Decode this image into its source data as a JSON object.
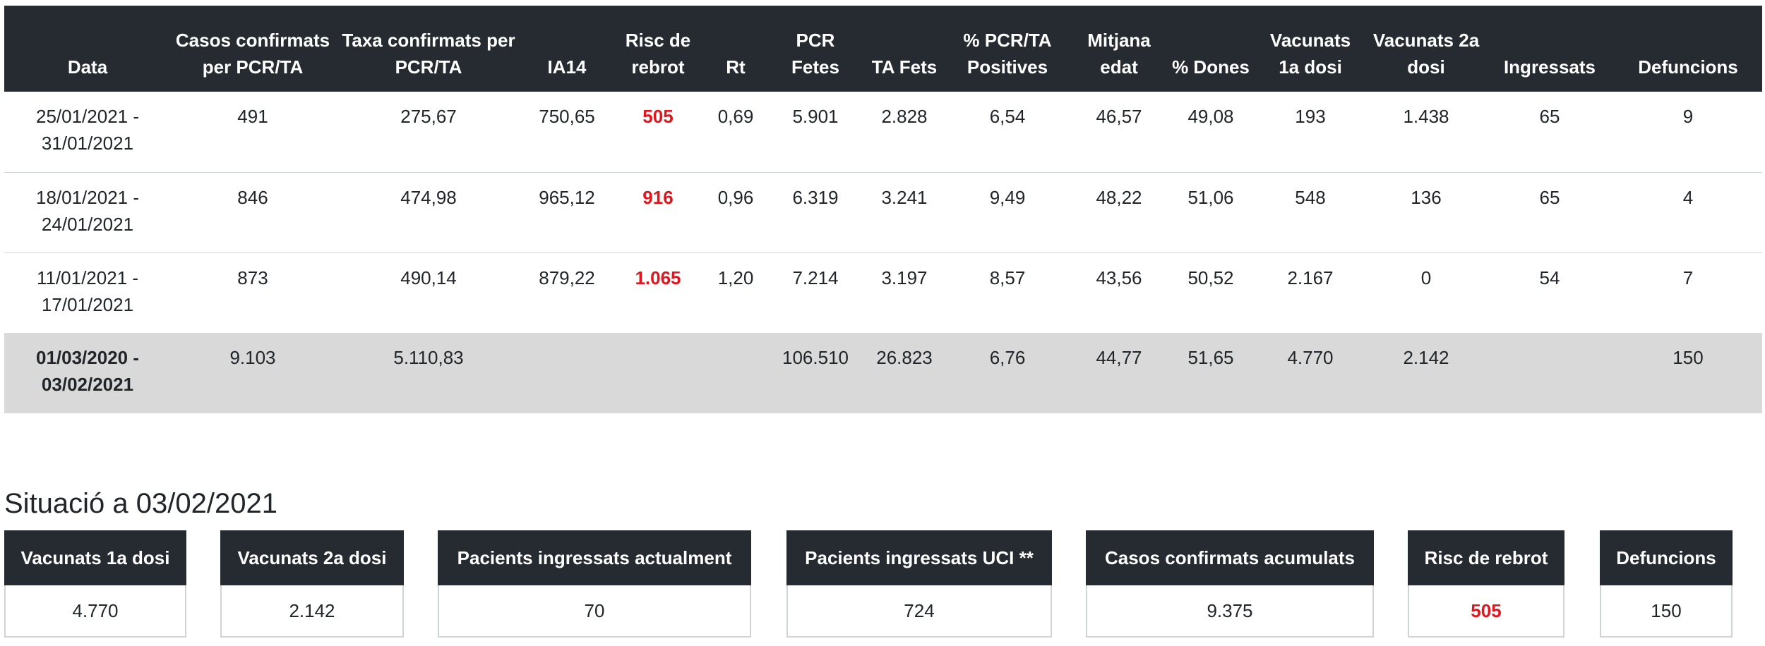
{
  "table": {
    "headers": [
      "Data",
      "Casos confirmats per PCR/TA",
      "Taxa confirmats per PCR/TA",
      "IA14",
      "Risc de rebrot",
      "Rt",
      "PCR Fetes",
      "TA Fets",
      "% PCR/TA Positives",
      "Mitjana edat",
      "% Dones",
      "Vacunats 1a dosi",
      "Vacunats 2a dosi",
      "Ingressats",
      "Defuncions"
    ],
    "rows": [
      {
        "data": "25/01/2021 - 31/01/2021",
        "casos": "491",
        "taxa": "275,67",
        "ia14": "750,65",
        "risc": "505",
        "rt": "0,69",
        "pcr": "5.901",
        "ta": "2.828",
        "positives": "6,54",
        "edat": "46,57",
        "dones": "49,08",
        "vac1": "193",
        "vac2": "1.438",
        "ingressats": "65",
        "defuncions": "9"
      },
      {
        "data": "18/01/2021 - 24/01/2021",
        "casos": "846",
        "taxa": "474,98",
        "ia14": "965,12",
        "risc": "916",
        "rt": "0,96",
        "pcr": "6.319",
        "ta": "3.241",
        "positives": "9,49",
        "edat": "48,22",
        "dones": "51,06",
        "vac1": "548",
        "vac2": "136",
        "ingressats": "65",
        "defuncions": "4"
      },
      {
        "data": "11/01/2021 - 17/01/2021",
        "casos": "873",
        "taxa": "490,14",
        "ia14": "879,22",
        "risc": "1.065",
        "rt": "1,20",
        "pcr": "7.214",
        "ta": "3.197",
        "positives": "8,57",
        "edat": "43,56",
        "dones": "50,52",
        "vac1": "2.167",
        "vac2": "0",
        "ingressats": "54",
        "defuncions": "7"
      }
    ],
    "total": {
      "data": "01/03/2020 - 03/02/2021",
      "casos": "9.103",
      "taxa": "5.110,83",
      "ia14": "",
      "risc": "",
      "rt": "",
      "pcr": "106.510",
      "ta": "26.823",
      "positives": "6,76",
      "edat": "44,77",
      "dones": "51,65",
      "vac1": "4.770",
      "vac2": "2.142",
      "ingressats": "",
      "defuncions": "150"
    }
  },
  "situacio": {
    "title": "Situació a 03/02/2021",
    "cards": [
      {
        "label": "Vacunats 1a dosi",
        "value": "4.770"
      },
      {
        "label": "Vacunats 2a dosi",
        "value": "2.142"
      },
      {
        "label": "Pacients ingressats actualment",
        "value": "70"
      },
      {
        "label": "Pacients ingressats UCI **",
        "value": "724"
      },
      {
        "label": "Casos confirmats acumulats",
        "value": "9.375"
      },
      {
        "label": "Risc de rebrot",
        "value": "505"
      },
      {
        "label": "Defuncions",
        "value": "150"
      }
    ]
  },
  "colors": {
    "header_bg": "#262b31",
    "risc_red": "#e0161e",
    "total_row_bg": "#d9d9d9"
  }
}
